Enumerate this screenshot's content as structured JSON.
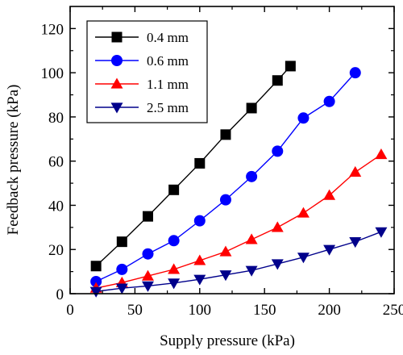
{
  "chart_data": {
    "type": "line",
    "title": "",
    "xlabel": "Supply pressure (kPa)",
    "ylabel": "Feedback pressure (kPa)",
    "xlim": [
      0,
      250
    ],
    "ylim": [
      0,
      130
    ],
    "xticks": [
      0,
      50,
      100,
      150,
      200,
      250
    ],
    "yticks": [
      0,
      20,
      40,
      60,
      80,
      100,
      120
    ],
    "grid": false,
    "legend_position": "top-left",
    "series": [
      {
        "name": "0.4 mm",
        "color": "#000000",
        "marker": "square",
        "x": [
          20,
          40,
          60,
          80,
          100,
          120,
          140,
          160,
          170
        ],
        "y": [
          12.5,
          23.5,
          35,
          47,
          59,
          72,
          84,
          96.5,
          103
        ]
      },
      {
        "name": "0.6 mm",
        "color": "#0000ff",
        "marker": "circle",
        "x": [
          20,
          40,
          60,
          80,
          100,
          120,
          140,
          160,
          180,
          200,
          220
        ],
        "y": [
          5.5,
          11,
          18,
          24,
          33,
          42.5,
          53,
          64.5,
          79.5,
          87,
          100
        ]
      },
      {
        "name": "1.1 mm",
        "color": "#ff0000",
        "marker": "triangle-up",
        "x": [
          20,
          40,
          60,
          80,
          100,
          120,
          140,
          160,
          180,
          200,
          220,
          240
        ],
        "y": [
          2.5,
          5,
          8,
          11,
          15,
          19,
          24.5,
          30,
          36.5,
          44.5,
          55,
          63
        ]
      },
      {
        "name": "2.5 mm",
        "color": "#00008b",
        "marker": "triangle-down",
        "x": [
          20,
          40,
          60,
          80,
          100,
          120,
          140,
          160,
          180,
          200,
          220,
          240
        ],
        "y": [
          1,
          2.5,
          3.5,
          4.8,
          6.5,
          8.5,
          10.5,
          13.5,
          16.5,
          20,
          23.5,
          28
        ]
      }
    ]
  }
}
